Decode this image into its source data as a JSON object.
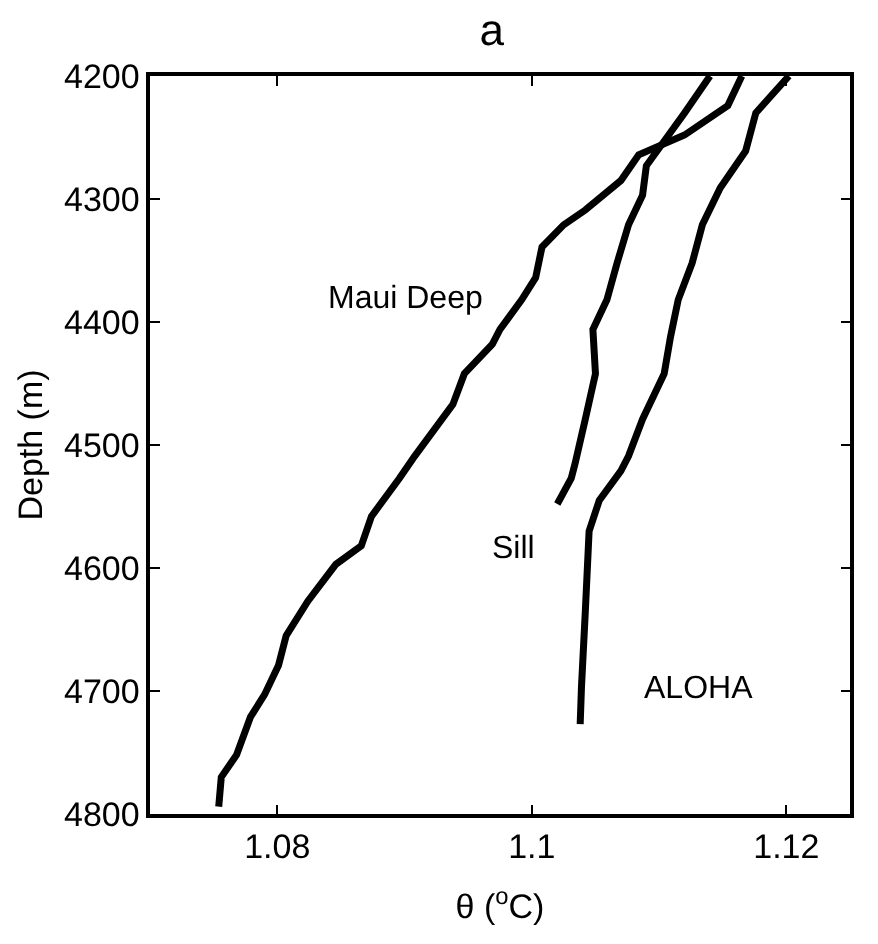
{
  "chart_data": {
    "type": "line",
    "title": "a",
    "xlabel": "θ ($^{o}$C)",
    "ylabel": "Depth (m)",
    "xlim": [
      1.07,
      1.125
    ],
    "xticks": [
      1.08,
      {
        "value": 1.1,
        "label": "1.1"
      },
      1.12
    ],
    "ylim": [
      4800,
      4200
    ],
    "yticks": [
      4200,
      4300,
      4400,
      4500,
      4600,
      4700,
      4800
    ],
    "legend": false,
    "line_style": "solid",
    "series": [
      {
        "name": "Maui Deep",
        "color": "#000000",
        "x": [
          1.1165,
          1.1154,
          1.112,
          1.1084,
          1.107,
          1.1042,
          1.1025,
          1.1008,
          1.1003,
          1.0992,
          1.0975,
          1.0969,
          1.0947,
          1.0938,
          1.0908,
          1.0896,
          1.0874,
          1.0866,
          1.0846,
          1.0824,
          1.0807,
          1.0801,
          1.079,
          1.0779,
          1.0768,
          1.0756,
          1.0754
        ],
        "values": [
          4200,
          4224,
          4248,
          4264,
          4285,
          4309,
          4321,
          4339,
          4364,
          4382,
          4406,
          4418,
          4442,
          4467,
          4509,
          4527,
          4558,
          4582,
          4597,
          4627,
          4655,
          4679,
          4703,
          4721,
          4752,
          4770,
          4794
        ]
      },
      {
        "name": "Sill",
        "color": "#000000",
        "x": [
          1.114,
          1.112,
          1.109,
          1.1087,
          1.1076,
          1.1067,
          1.1059,
          1.1048,
          1.105,
          1.1042,
          1.1034,
          1.1031,
          1.102
        ],
        "values": [
          4200,
          4230,
          4273,
          4297,
          4321,
          4352,
          4382,
          4406,
          4442,
          4479,
          4515,
          4527,
          4548
        ]
      },
      {
        "name": "ALOHA",
        "color": "#000000",
        "x": [
          1.1202,
          1.1176,
          1.1168,
          1.1148,
          1.1134,
          1.1126,
          1.1115,
          1.1109,
          1.1104,
          1.1087,
          1.1076,
          1.107,
          1.1053,
          1.1045,
          1.1042,
          1.1039,
          1.1038
        ],
        "values": [
          4200,
          4230,
          4261,
          4291,
          4321,
          4352,
          4382,
          4412,
          4442,
          4479,
          4509,
          4521,
          4545,
          4570,
          4636,
          4697,
          4727
        ]
      }
    ]
  }
}
